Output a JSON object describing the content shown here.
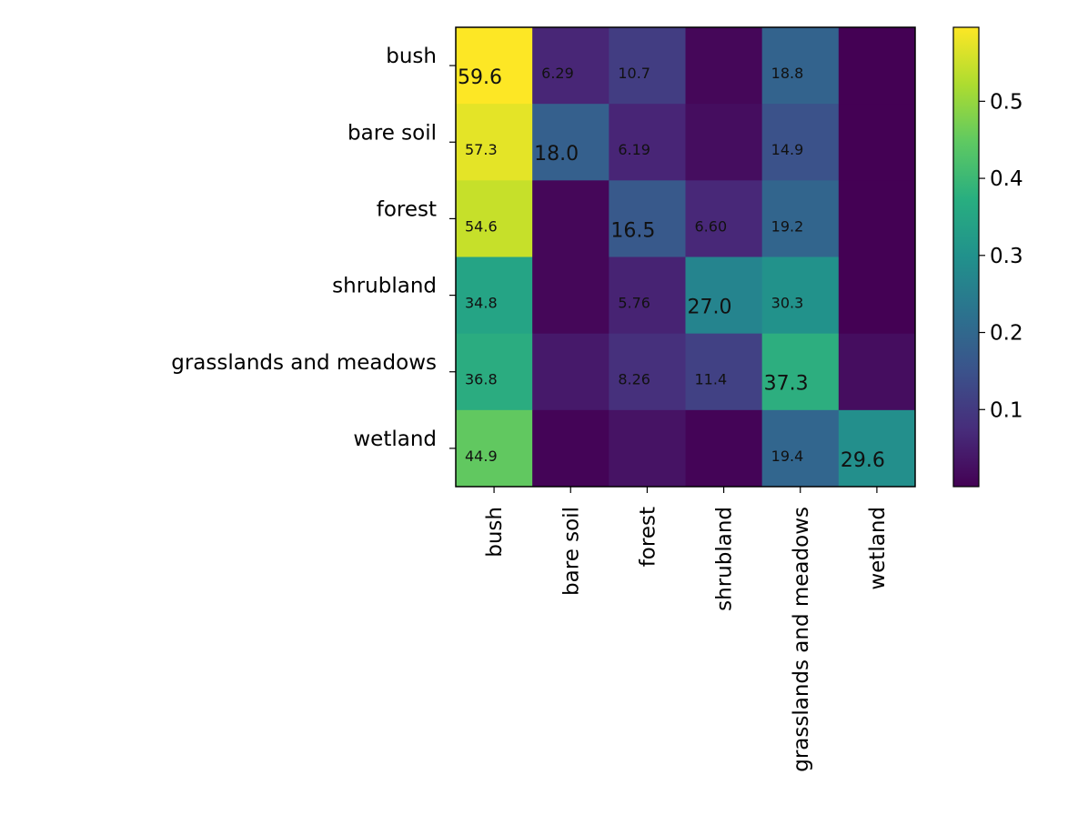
{
  "chart_data": {
    "type": "heatmap",
    "title": "",
    "xlabel": "",
    "ylabel": "",
    "row_labels": [
      "bush",
      "bare soil",
      "forest",
      "shrubland",
      "grasslands and meadows",
      "wetland"
    ],
    "col_labels": [
      "bush",
      "bare soil",
      "forest",
      "shrubland",
      "grasslands and meadows",
      "wetland"
    ],
    "values": [
      [
        0.596,
        0.0629,
        0.107,
        0.01,
        0.188,
        0.0
      ],
      [
        0.573,
        0.18,
        0.0619,
        0.02,
        0.149,
        0.0
      ],
      [
        0.546,
        0.01,
        0.165,
        0.066,
        0.192,
        0.0
      ],
      [
        0.348,
        0.01,
        0.0576,
        0.27,
        0.303,
        0.0
      ],
      [
        0.368,
        0.04,
        0.0826,
        0.114,
        0.373,
        0.02
      ],
      [
        0.449,
        0.005,
        0.03,
        0.005,
        0.194,
        0.296
      ]
    ],
    "cell_labels": [
      [
        "59.6",
        "6.29",
        "10.7",
        "",
        "18.8",
        ""
      ],
      [
        "57.3",
        "18.0",
        "6.19",
        "",
        "14.9",
        ""
      ],
      [
        "54.6",
        "",
        "16.5",
        "6.60",
        "19.2",
        ""
      ],
      [
        "34.8",
        "",
        "5.76",
        "27.0",
        "30.3",
        ""
      ],
      [
        "36.8",
        "",
        "8.26",
        "11.4",
        "37.3",
        ""
      ],
      [
        "44.9",
        "",
        "",
        "",
        "19.4",
        "29.6"
      ]
    ],
    "colormap": "viridis",
    "colorbar": {
      "vmin": 0.0,
      "vmax": 0.596,
      "ticks": [
        0.1,
        0.2,
        0.3,
        0.4,
        0.5
      ],
      "tick_labels": [
        "0.1",
        "0.2",
        "0.3",
        "0.4",
        "0.5"
      ]
    }
  }
}
